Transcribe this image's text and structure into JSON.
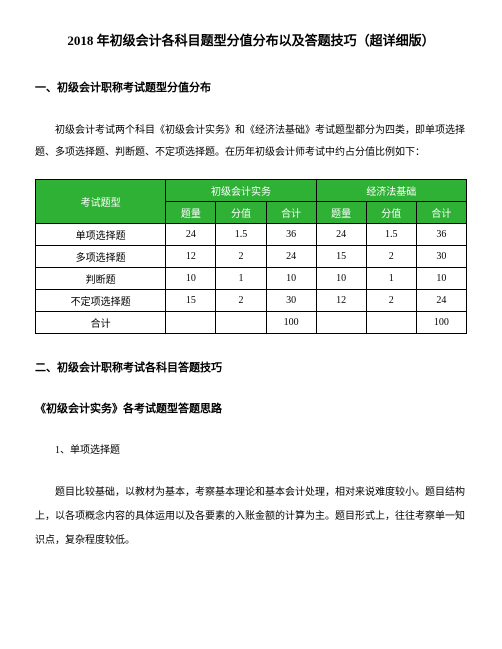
{
  "title": "2018 年初级会计各科目题型分值分布以及答题技巧（超详细版）",
  "section1_heading": "一、初级会计职称考试题型分值分布",
  "intro_text": "初级会计考试两个科目《初级会计实务》和《经济法基础》考试题型都分为四类，即单项选择题、多项选择题、判断题、不定项选择题。在历年初级会计师考试中约占分值比例如下：",
  "table": {
    "header_level1": [
      "考试题型",
      "初级会计实务",
      "经济法基础"
    ],
    "header_level2": [
      "题量",
      "分值",
      "合计",
      "题量",
      "分值",
      "合计"
    ],
    "rows": [
      [
        "单项选择题",
        "24",
        "1.5",
        "36",
        "24",
        "1.5",
        "36"
      ],
      [
        "多项选择题",
        "12",
        "2",
        "24",
        "15",
        "2",
        "30"
      ],
      [
        "判断题",
        "10",
        "1",
        "10",
        "10",
        "1",
        "10"
      ],
      [
        "不定项选择题",
        "15",
        "2",
        "30",
        "12",
        "2",
        "24"
      ],
      [
        "合计",
        "",
        "",
        "100",
        "",
        "",
        "100"
      ]
    ],
    "header_bg": "#2eb135",
    "header_color": "#ffffff",
    "border_color": "#000000"
  },
  "section2_heading": "二、初级会计职称考试各科目答题技巧",
  "sub_heading": "《初级会计实务》各考试题型答题思路",
  "item1_heading": "1、单项选择题",
  "item1_para": "题目比较基础，以教材为基本，考察基本理论和基本会计处理，相对来说难度较小。题目结构上，以各项概念内容的具体运用以及各要素的入账金额的计算为主。题目形式上，往往考察单一知识点，复杂程度较低。"
}
